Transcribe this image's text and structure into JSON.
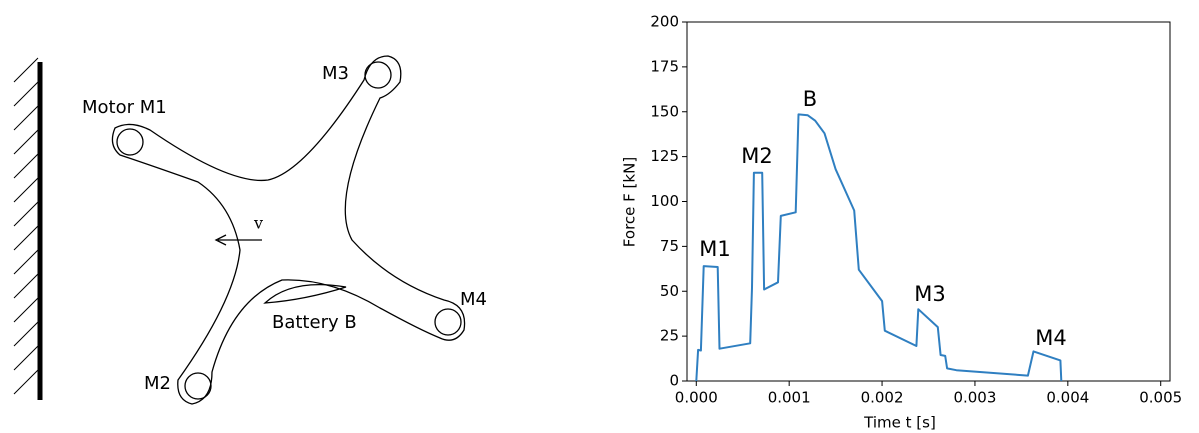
{
  "diagram": {
    "labels": [
      "Motor M1",
      "M3",
      "v",
      "M2",
      "Battery B",
      "M4"
    ]
  },
  "chart_data": {
    "type": "line",
    "xlabel": "Time t [s]",
    "ylabel": "Force F [kN]",
    "xlim": [
      -0.0001,
      0.0051
    ],
    "ylim": [
      0,
      200
    ],
    "xticks": [
      {
        "value": 0,
        "label": "0.000"
      },
      {
        "value": 0.001,
        "label": "0.001"
      },
      {
        "value": 0.002,
        "label": "0.002"
      },
      {
        "value": 0.003,
        "label": "0.003"
      },
      {
        "value": 0.004,
        "label": "0.004"
      },
      {
        "value": 0.005,
        "label": "0.005"
      }
    ],
    "yticks": [
      0,
      25,
      50,
      75,
      100,
      125,
      150,
      175,
      200
    ],
    "annotations": [
      "M1",
      "M2",
      "B",
      "M3",
      "M4"
    ],
    "series": [
      {
        "color": "#2f7fc1",
        "x": [
          0,
          2e-05,
          5e-05,
          8e-05,
          0.00023,
          0.00025,
          0.00058,
          0.0006,
          0.00062,
          0.00071,
          0.00073,
          0.00088,
          0.00091,
          0.00107,
          0.0011,
          0.0012,
          0.00128,
          0.00138,
          0.0015,
          0.0017,
          0.00175,
          0.002,
          0.00203,
          0.00237,
          0.00239,
          0.0026,
          0.00263,
          0.00268,
          0.0027,
          0.0028,
          0.00357,
          0.00363,
          0.00392,
          0.00393
        ],
        "values": [
          0,
          17.3,
          17,
          64,
          63.5,
          18,
          21,
          52,
          116,
          116,
          51,
          55,
          92,
          94,
          148.5,
          148,
          145,
          138,
          118,
          95,
          62,
          44.5,
          28,
          19.5,
          40,
          30,
          14.5,
          14,
          7,
          6,
          3,
          16.5,
          11.5,
          0
        ]
      }
    ]
  }
}
